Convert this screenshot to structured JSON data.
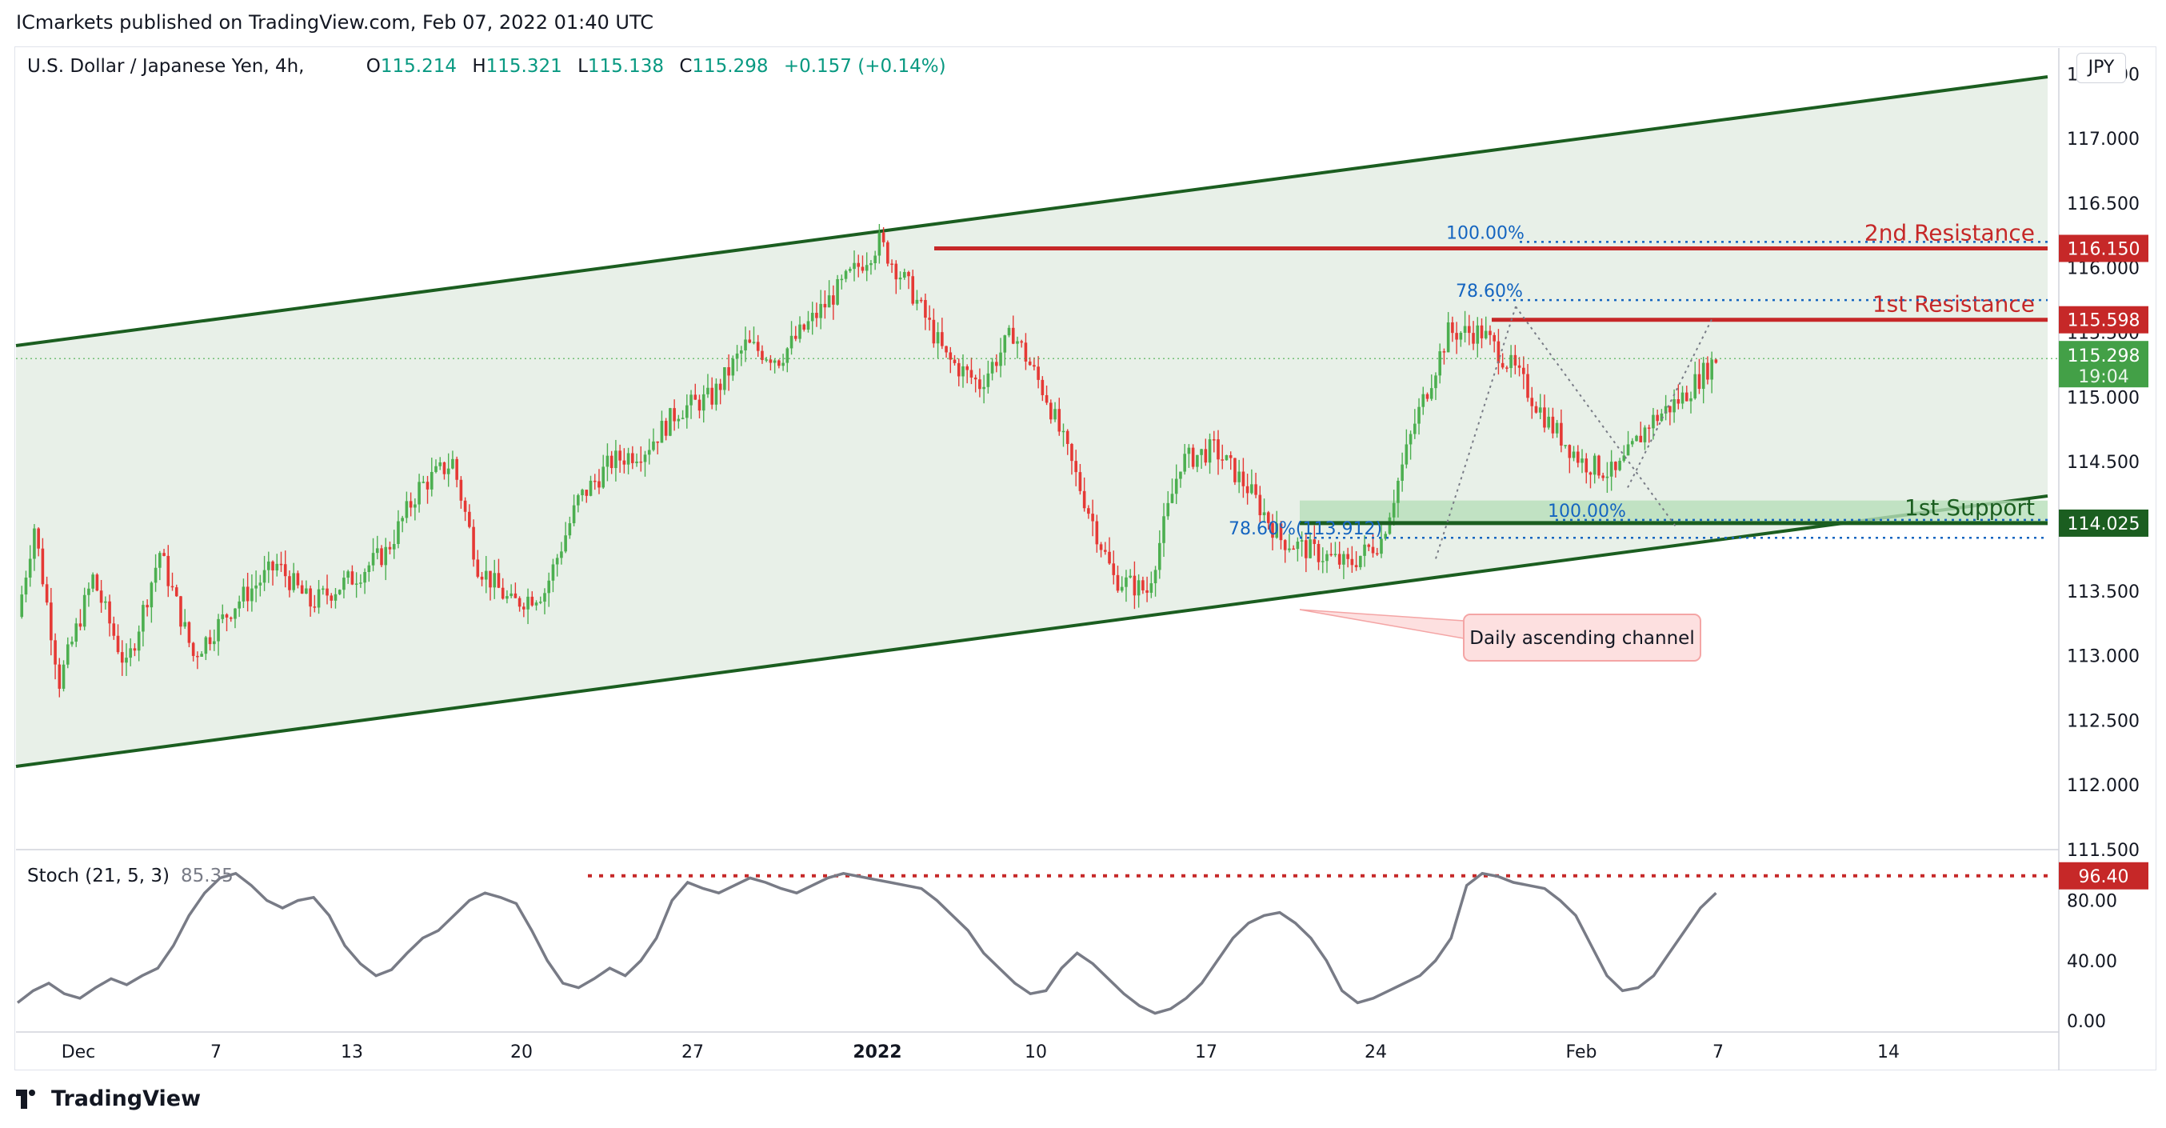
{
  "header": {
    "published": "ICmarkets published on TradingView.com, Feb 07, 2022 01:40 UTC"
  },
  "legend": {
    "symbol": "U.S. Dollar / Japanese Yen, 4h,",
    "open_label": "O",
    "open": "115.214",
    "high_label": "H",
    "high": "115.321",
    "low_label": "L",
    "low": "115.138",
    "close_label": "C",
    "close": "115.298",
    "change": "+0.157 (+0.14%)"
  },
  "currency": "JPY",
  "stoch": {
    "label": "Stoch (21, 5, 3)",
    "value": "85.35"
  },
  "footer": {
    "brand": "TradingView"
  },
  "colors": {
    "up": "#26a69a",
    "upFill": "#4caf50",
    "down": "#e53935",
    "channel": "#1b5e20",
    "channelFill": "#e8f0e8",
    "resistance": "#c62828",
    "support": "#1b5e20",
    "fib": "#1565c0",
    "stochLine": "#787b86"
  },
  "chart_data": [
    {
      "type": "candlestick",
      "title": "U.S. Dollar / Japanese Yen, 4h,",
      "y_axis": {
        "min": 111.5,
        "max": 117.7,
        "ticks": [
          "117.500",
          "117.000",
          "116.500",
          "116.000",
          "115.500",
          "115.000",
          "114.500",
          "114.000",
          "113.500",
          "113.000",
          "112.500",
          "112.000",
          "111.500"
        ]
      },
      "x_axis": {
        "ticks": [
          "Dec",
          "7",
          "13",
          "20",
          "27",
          "2022",
          "10",
          "17",
          "24",
          "Feb",
          "7",
          "14"
        ]
      },
      "price_path": [
        [
          0,
          113.3
        ],
        [
          4,
          114.0
        ],
        [
          10,
          112.8
        ],
        [
          18,
          113.6
        ],
        [
          26,
          112.9
        ],
        [
          34,
          113.8
        ],
        [
          42,
          113.0
        ],
        [
          52,
          113.4
        ],
        [
          62,
          113.7
        ],
        [
          70,
          113.4
        ],
        [
          80,
          113.6
        ],
        [
          88,
          113.8
        ],
        [
          96,
          114.3
        ],
        [
          104,
          114.5
        ],
        [
          110,
          113.7
        ],
        [
          118,
          113.4
        ],
        [
          126,
          113.5
        ],
        [
          134,
          114.2
        ],
        [
          142,
          114.5
        ],
        [
          150,
          114.6
        ],
        [
          158,
          114.9
        ],
        [
          166,
          115.0
        ],
        [
          174,
          115.4
        ],
        [
          182,
          115.3
        ],
        [
          190,
          115.6
        ],
        [
          198,
          115.9
        ],
        [
          206,
          116.2
        ],
        [
          214,
          115.8
        ],
        [
          222,
          115.3
        ],
        [
          230,
          115.1
        ],
        [
          238,
          115.5
        ],
        [
          246,
          115.0
        ],
        [
          254,
          114.3
        ],
        [
          262,
          113.6
        ],
        [
          270,
          113.5
        ],
        [
          278,
          114.5
        ],
        [
          286,
          114.6
        ],
        [
          294,
          114.3
        ],
        [
          302,
          113.9
        ],
        [
          310,
          113.8
        ],
        [
          318,
          113.7
        ],
        [
          326,
          113.9
        ],
        [
          334,
          114.8
        ],
        [
          342,
          115.5
        ],
        [
          350,
          115.5
        ],
        [
          358,
          115.2
        ],
        [
          366,
          114.8
        ],
        [
          374,
          114.5
        ],
        [
          382,
          114.4
        ],
        [
          390,
          114.8
        ],
        [
          398,
          115.0
        ],
        [
          406,
          115.3
        ]
      ],
      "last_price": "115.298",
      "countdown": "19:04",
      "annotations": {
        "channel_label": "Daily ascending channel",
        "levels": [
          {
            "name": "2nd Resistance",
            "price": 116.15,
            "tag": "116.150"
          },
          {
            "name": "1st Resistance",
            "price": 115.598,
            "tag": "115.598"
          },
          {
            "name": "1st Support",
            "price": 114.025,
            "tag": "114.025"
          }
        ],
        "fib_labels": [
          {
            "text": "100.00%",
            "price": 116.2
          },
          {
            "text": "78.60%",
            "price": 115.75
          },
          {
            "text": "78.60%(113.912)",
            "price": 113.912
          },
          {
            "text": "100.00%",
            "price": 114.05
          }
        ]
      }
    },
    {
      "type": "line",
      "title": "Stoch (21, 5, 3)",
      "y_axis": {
        "ticks": [
          "80.00",
          "40.00",
          "0.00"
        ]
      },
      "threshold": {
        "value": 96.4,
        "tag": "96.40"
      },
      "last_value": "85.35",
      "values": [
        12,
        20,
        25,
        18,
        15,
        22,
        28,
        24,
        30,
        35,
        50,
        70,
        85,
        95,
        98,
        90,
        80,
        75,
        80,
        82,
        70,
        50,
        38,
        30,
        34,
        45,
        55,
        60,
        70,
        80,
        85,
        82,
        78,
        60,
        40,
        25,
        22,
        28,
        35,
        30,
        40,
        55,
        80,
        92,
        88,
        85,
        90,
        95,
        92,
        88,
        85,
        90,
        95,
        98,
        96,
        94,
        92,
        90,
        88,
        80,
        70,
        60,
        45,
        35,
        25,
        18,
        20,
        35,
        45,
        38,
        28,
        18,
        10,
        5,
        8,
        15,
        25,
        40,
        55,
        65,
        70,
        72,
        65,
        55,
        40,
        20,
        12,
        15,
        20,
        25,
        30,
        40,
        55,
        90,
        98,
        96,
        92,
        90,
        88,
        80,
        70,
        50,
        30,
        20,
        22,
        30,
        45,
        60,
        75,
        85
      ]
    }
  ]
}
